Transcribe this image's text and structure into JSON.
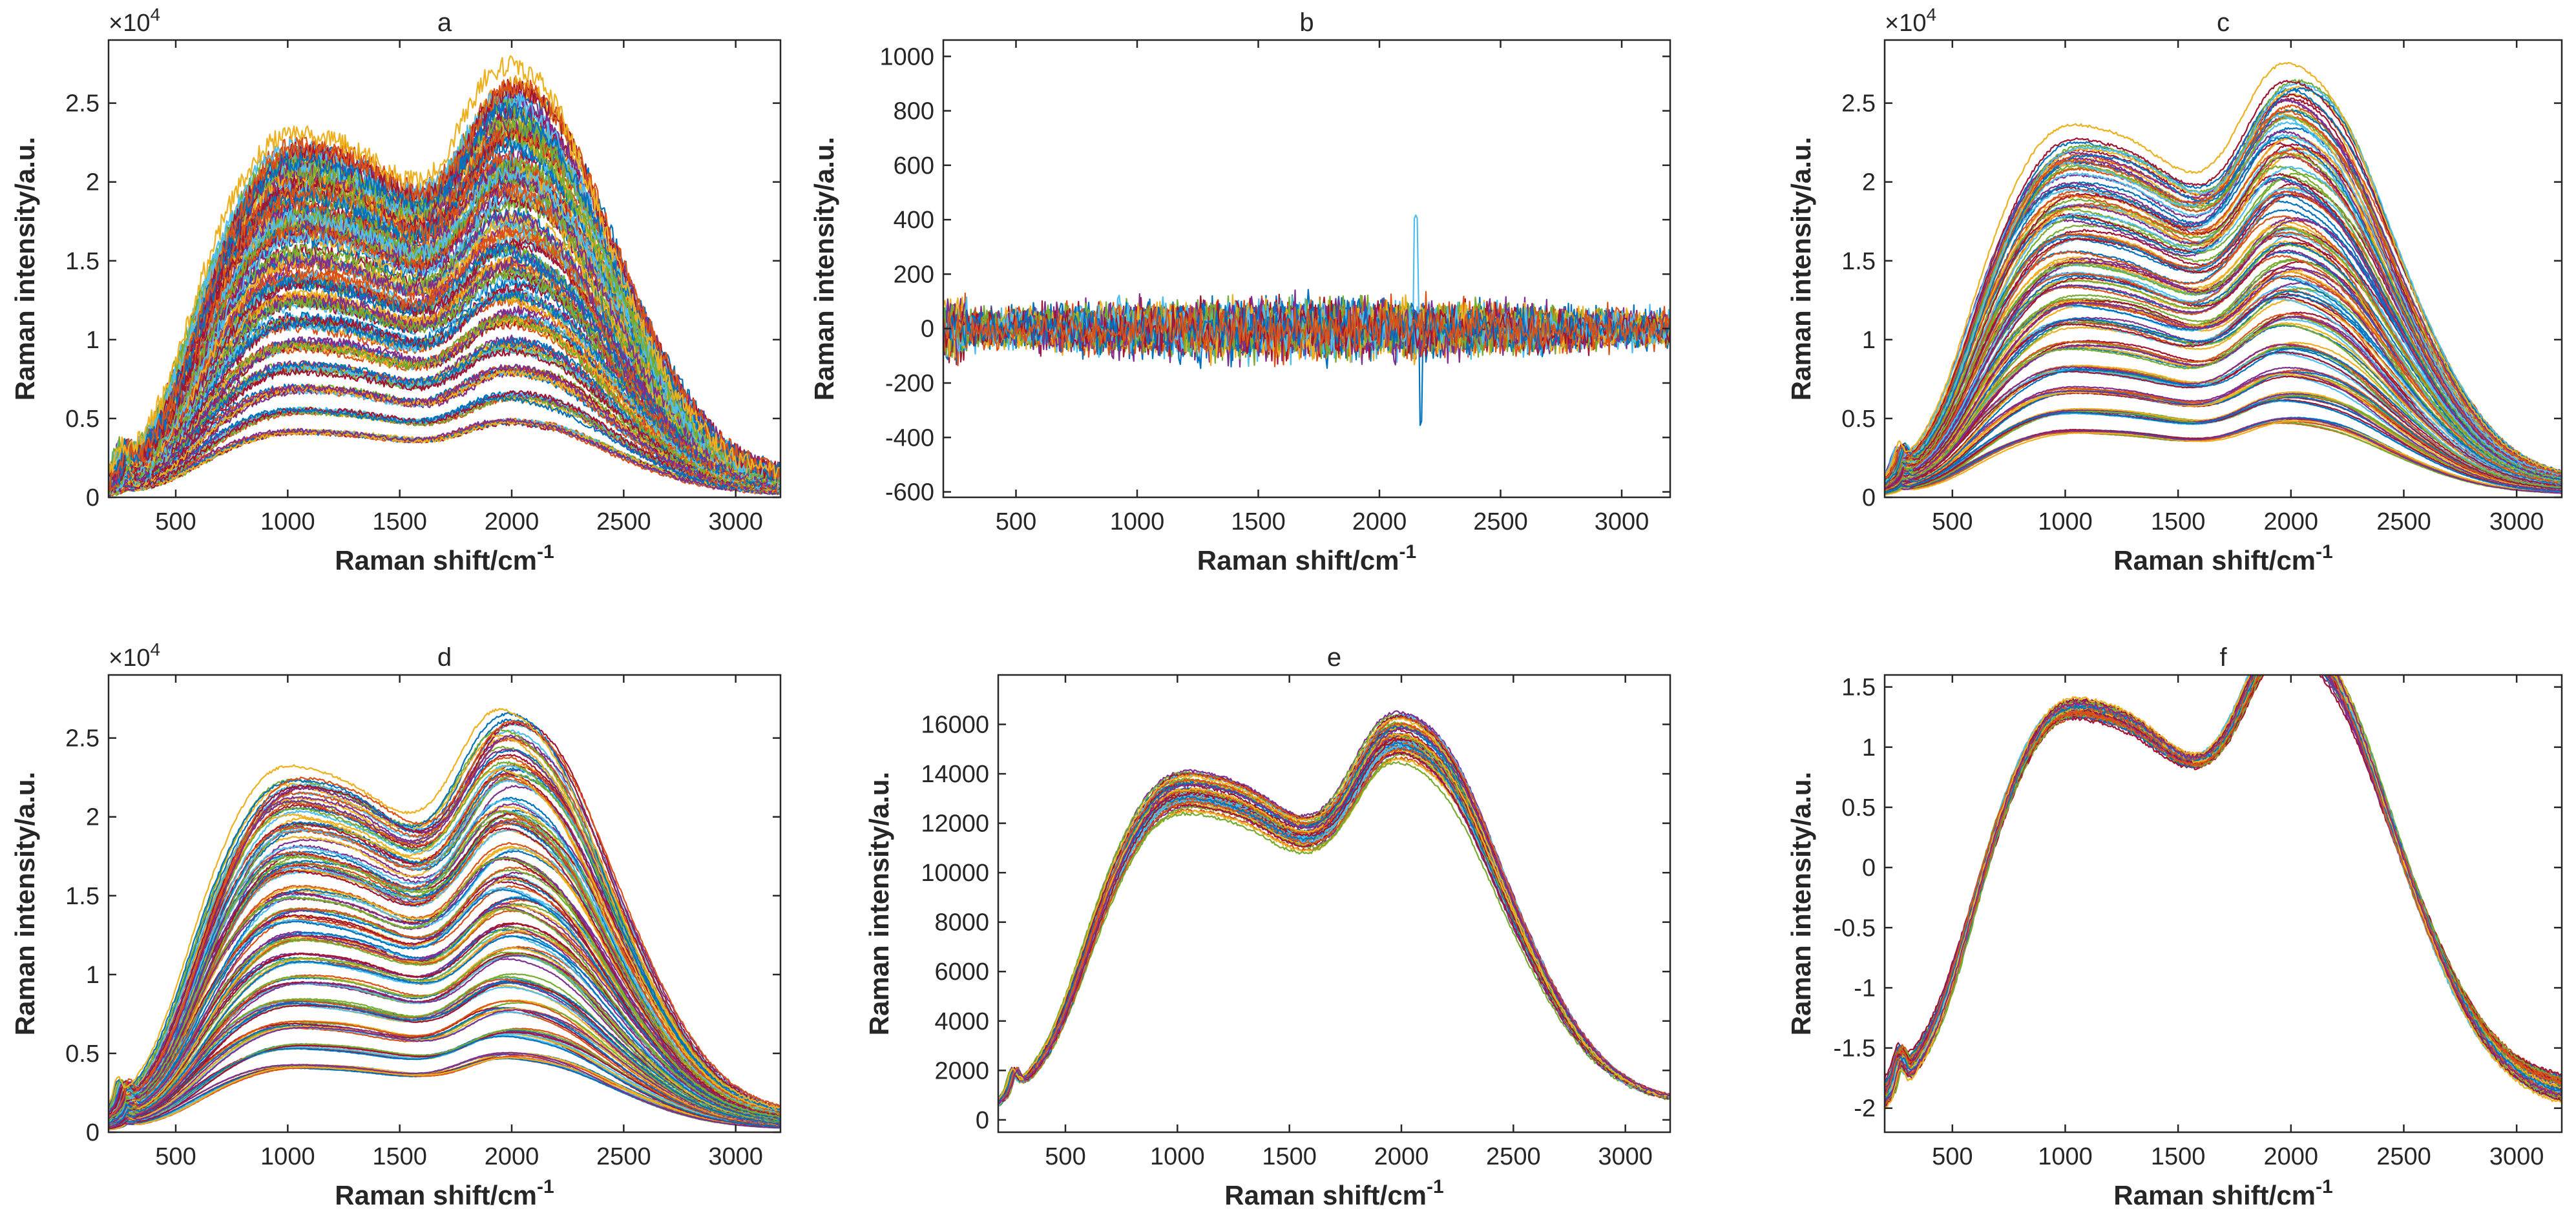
{
  "palette": [
    "#0072BD",
    "#D95319",
    "#EDB120",
    "#7E2F8E",
    "#77AC30",
    "#4DBEEE",
    "#A2142F"
  ],
  "chart_data": [
    {
      "id": "a",
      "type": "line",
      "title": "a",
      "xlabel": "Raman shift/cm",
      "xlabel_sup": "-1",
      "ylabel": "Raman intensity/a.u.",
      "xlim": [
        200,
        3200
      ],
      "ylim": [
        0,
        2.9
      ],
      "xticks": [
        500,
        1000,
        1500,
        2000,
        2500,
        3000
      ],
      "xtick_labels": [
        "500",
        "1000",
        "1500",
        "2000",
        "2500",
        "3000"
      ],
      "yticks": [
        0,
        0.5,
        1,
        1.5,
        2,
        2.5
      ],
      "ytick_labels": [
        "0",
        "0.5",
        "1",
        "1.5",
        "2",
        "2.5"
      ],
      "exponent_label": "×10",
      "exponent_sup": "4",
      "profile": "raw",
      "series_amplitude": [
        0.52,
        0.68,
        0.85,
        1.02,
        1.2,
        1.38,
        1.55,
        1.72,
        1.9,
        2.08,
        2.25,
        2.42,
        2.6,
        2.76,
        2.88
      ],
      "noise": 0.008
    },
    {
      "id": "b",
      "type": "line",
      "title": "b",
      "xlabel": "Raman shift/cm",
      "xlabel_sup": "-1",
      "ylabel": "Raman intensity/a.u.",
      "xlim": [
        200,
        3200
      ],
      "ylim": [
        -620,
        1060
      ],
      "xticks": [
        500,
        1000,
        1500,
        2000,
        2500,
        3000
      ],
      "xtick_labels": [
        "500",
        "1000",
        "1500",
        "2000",
        "2500",
        "3000"
      ],
      "yticks": [
        -600,
        -400,
        -200,
        0,
        200,
        400,
        600,
        800,
        1000
      ],
      "ytick_labels": [
        "-600",
        "-400",
        "-200",
        "0",
        "200",
        "400",
        "600",
        "800",
        "1000"
      ],
      "profile": "noise",
      "series_amplitude": [
        120,
        110,
        100,
        95,
        90,
        85,
        80,
        75,
        70,
        65,
        60,
        100
      ],
      "noise": 0
    },
    {
      "id": "c",
      "type": "line",
      "title": "c",
      "xlabel": "Raman shift/cm",
      "xlabel_sup": "-1",
      "ylabel": "Raman intensity/a.u.",
      "xlim": [
        200,
        3200
      ],
      "ylim": [
        0,
        2.9
      ],
      "xticks": [
        500,
        1000,
        1500,
        2000,
        2500,
        3000
      ],
      "xtick_labels": [
        "500",
        "1000",
        "1500",
        "2000",
        "2500",
        "3000"
      ],
      "yticks": [
        0,
        0.5,
        1,
        1.5,
        2,
        2.5
      ],
      "ytick_labels": [
        "0",
        "0.5",
        "1",
        "1.5",
        "2",
        "2.5"
      ],
      "exponent_label": "×10",
      "exponent_sup": "4",
      "profile": "raw",
      "series_amplitude": [
        0.52,
        0.68,
        0.85,
        1.02,
        1.2,
        1.38,
        1.55,
        1.72,
        1.9,
        2.08,
        2.25,
        2.42,
        2.6,
        2.76,
        2.88
      ],
      "noise": 0.001
    },
    {
      "id": "d",
      "type": "line",
      "title": "d",
      "xlabel": "Raman shift/cm",
      "xlabel_sup": "-1",
      "ylabel": "Raman intensity/a.u.",
      "xlim": [
        200,
        3200
      ],
      "ylim": [
        0,
        2.9
      ],
      "xticks": [
        500,
        1000,
        1500,
        2000,
        2500,
        3000
      ],
      "xtick_labels": [
        "500",
        "1000",
        "1500",
        "2000",
        "2500",
        "3000"
      ],
      "yticks": [
        0,
        0.5,
        1,
        1.5,
        2,
        2.5
      ],
      "ytick_labels": [
        "0",
        "0.5",
        "1",
        "1.5",
        "2",
        "2.5"
      ],
      "exponent_label": "×10",
      "exponent_sup": "4",
      "profile": "raw",
      "series_amplitude": [
        0.52,
        0.68,
        0.85,
        1.02,
        1.2,
        1.38,
        1.55,
        1.72,
        1.9,
        2.08,
        2.25,
        2.42,
        2.6,
        2.76,
        2.88
      ],
      "noise": 0.001
    },
    {
      "id": "e",
      "type": "line",
      "title": "e",
      "xlabel": "Raman shift/cm",
      "xlabel_sup": "-1",
      "ylabel": "Raman intensity/a.u.",
      "xlim": [
        200,
        3200
      ],
      "ylim": [
        -500,
        18000
      ],
      "xticks": [
        500,
        1000,
        1500,
        2000,
        2500,
        3000
      ],
      "xtick_labels": [
        "500",
        "1000",
        "1500",
        "2000",
        "2500",
        "3000"
      ],
      "yticks": [
        0,
        2000,
        4000,
        6000,
        8000,
        10000,
        12000,
        14000,
        16000
      ],
      "ytick_labels": [
        "0",
        "2000",
        "4000",
        "6000",
        "8000",
        "10000",
        "12000",
        "14000",
        "16000"
      ],
      "profile": "normalized",
      "peak_value": 17000,
      "series_amplitude": [
        0.95,
        0.97,
        0.98,
        0.99,
        1.0,
        1.01,
        1.02,
        1.03,
        1.04
      ],
      "noise": 0.002
    },
    {
      "id": "f",
      "type": "line",
      "title": "f",
      "xlabel": "Raman shift/cm",
      "xlabel_sup": "-1",
      "ylabel": "Raman intensity/a.u.",
      "xlim": [
        200,
        3200
      ],
      "ylim": [
        -2.2,
        1.6
      ],
      "xticks": [
        500,
        1000,
        1500,
        2000,
        2500,
        3000
      ],
      "xtick_labels": [
        "500",
        "1000",
        "1500",
        "2000",
        "2500",
        "3000"
      ],
      "yticks": [
        -2,
        -1.5,
        -1,
        -0.5,
        0,
        0.5,
        1,
        1.5
      ],
      "ytick_labels": [
        "-2",
        "-1.5",
        "-1",
        "-0.5",
        "0",
        "0.5",
        "1",
        "1.5"
      ],
      "profile": "standardized",
      "series_amplitude": [
        0.95,
        0.97,
        0.98,
        0.99,
        1.0,
        1.01,
        1.02,
        1.03,
        1.04
      ],
      "noise": 0.002
    }
  ]
}
